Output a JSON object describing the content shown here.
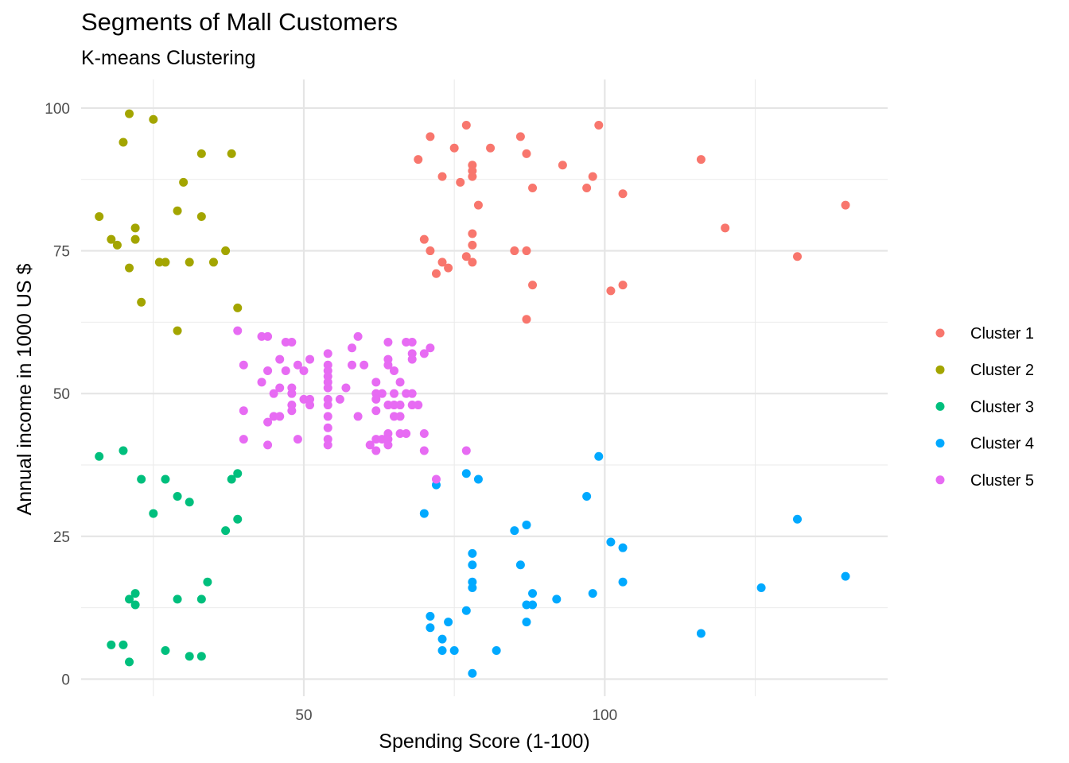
{
  "chart_data": {
    "type": "scatter",
    "title": "Segments of Mall Customers",
    "subtitle": "K-means Clustering",
    "xlabel": "Spending Score (1-100)",
    "ylabel": "Annual income in 1000 US $",
    "xlim": [
      13,
      147
    ],
    "ylim": [
      -3,
      105
    ],
    "x_ticks": [
      50,
      100
    ],
    "y_ticks": [
      0,
      25,
      50,
      75,
      100
    ],
    "grid": true,
    "legend_position": "right",
    "series": [
      {
        "name": "Cluster 1",
        "color": "#F8766D",
        "points": [
          [
            69,
            91
          ],
          [
            71,
            95
          ],
          [
            73,
            88
          ],
          [
            75,
            93
          ],
          [
            76,
            87
          ],
          [
            77,
            97
          ],
          [
            78,
            90
          ],
          [
            78,
            89
          ],
          [
            78,
            88
          ],
          [
            79,
            83
          ],
          [
            81,
            93
          ],
          [
            86,
            95
          ],
          [
            87,
            92
          ],
          [
            88,
            86
          ],
          [
            93,
            90
          ],
          [
            97,
            86
          ],
          [
            98,
            88
          ],
          [
            99,
            97
          ],
          [
            103,
            85
          ],
          [
            116,
            91
          ],
          [
            120,
            79
          ],
          [
            132,
            74
          ],
          [
            140,
            83
          ],
          [
            70,
            77
          ],
          [
            71,
            75
          ],
          [
            72,
            71
          ],
          [
            73,
            73
          ],
          [
            74,
            72
          ],
          [
            77,
            74
          ],
          [
            78,
            76
          ],
          [
            78,
            78
          ],
          [
            78,
            73
          ],
          [
            85,
            75
          ],
          [
            87,
            75
          ],
          [
            88,
            69
          ],
          [
            87,
            63
          ],
          [
            101,
            68
          ],
          [
            103,
            69
          ]
        ]
      },
      {
        "name": "Cluster 2",
        "color": "#A3A500",
        "points": [
          [
            16,
            81
          ],
          [
            18,
            77
          ],
          [
            19,
            76
          ],
          [
            20,
            94
          ],
          [
            21,
            99
          ],
          [
            21,
            72
          ],
          [
            22,
            79
          ],
          [
            22,
            77
          ],
          [
            23,
            66
          ],
          [
            25,
            98
          ],
          [
            26,
            73
          ],
          [
            27,
            73
          ],
          [
            29,
            82
          ],
          [
            29,
            61
          ],
          [
            30,
            87
          ],
          [
            31,
            73
          ],
          [
            33,
            92
          ],
          [
            33,
            81
          ],
          [
            35,
            73
          ],
          [
            37,
            75
          ],
          [
            38,
            92
          ],
          [
            39,
            65
          ]
        ]
      },
      {
        "name": "Cluster 3",
        "color": "#00BF7D",
        "points": [
          [
            16,
            39
          ],
          [
            20,
            40
          ],
          [
            23,
            35
          ],
          [
            25,
            29
          ],
          [
            27,
            35
          ],
          [
            29,
            32
          ],
          [
            31,
            31
          ],
          [
            37,
            26
          ],
          [
            38,
            35
          ],
          [
            39,
            36
          ],
          [
            39,
            28
          ],
          [
            18,
            6
          ],
          [
            20,
            6
          ],
          [
            21,
            14
          ],
          [
            21,
            3
          ],
          [
            22,
            15
          ],
          [
            22,
            13
          ],
          [
            27,
            5
          ],
          [
            29,
            14
          ],
          [
            31,
            4
          ],
          [
            33,
            4
          ],
          [
            33,
            14
          ],
          [
            34,
            17
          ]
        ]
      },
      {
        "name": "Cluster 4",
        "color": "#00A9FF",
        "points": [
          [
            70,
            29
          ],
          [
            72,
            34
          ],
          [
            77,
            36
          ],
          [
            79,
            35
          ],
          [
            78,
            22
          ],
          [
            78,
            20
          ],
          [
            78,
            17
          ],
          [
            78,
            16
          ],
          [
            77,
            12
          ],
          [
            71,
            11
          ],
          [
            71,
            9
          ],
          [
            74,
            10
          ],
          [
            73,
            7
          ],
          [
            73,
            5
          ],
          [
            75,
            5
          ],
          [
            78,
            1
          ],
          [
            82,
            5
          ],
          [
            85,
            26
          ],
          [
            86,
            20
          ],
          [
            87,
            27
          ],
          [
            87,
            13
          ],
          [
            87,
            10
          ],
          [
            88,
            15
          ],
          [
            88,
            13
          ],
          [
            92,
            14
          ],
          [
            97,
            32
          ],
          [
            98,
            15
          ],
          [
            99,
            39
          ],
          [
            101,
            24
          ],
          [
            103,
            23
          ],
          [
            103,
            17
          ],
          [
            116,
            8
          ],
          [
            126,
            16
          ],
          [
            132,
            28
          ],
          [
            140,
            18
          ]
        ]
      },
      {
        "name": "Cluster 5",
        "color": "#E76BF3",
        "points": [
          [
            39,
            61
          ],
          [
            40,
            55
          ],
          [
            40,
            47
          ],
          [
            40,
            42
          ],
          [
            43,
            52
          ],
          [
            43,
            60
          ],
          [
            44,
            60
          ],
          [
            44,
            54
          ],
          [
            44,
            45
          ],
          [
            44,
            41
          ],
          [
            45,
            50
          ],
          [
            45,
            46
          ],
          [
            46,
            56
          ],
          [
            46,
            51
          ],
          [
            46,
            46
          ],
          [
            47,
            59
          ],
          [
            47,
            54
          ],
          [
            48,
            59
          ],
          [
            48,
            51
          ],
          [
            48,
            50
          ],
          [
            48,
            48
          ],
          [
            48,
            47
          ],
          [
            49,
            55
          ],
          [
            49,
            42
          ],
          [
            50,
            49
          ],
          [
            50,
            54
          ],
          [
            51,
            56
          ],
          [
            51,
            48
          ],
          [
            51,
            49
          ],
          [
            54,
            57
          ],
          [
            54,
            55
          ],
          [
            54,
            54
          ],
          [
            54,
            53
          ],
          [
            54,
            52
          ],
          [
            54,
            51
          ],
          [
            54,
            49
          ],
          [
            54,
            48
          ],
          [
            54,
            46
          ],
          [
            54,
            44
          ],
          [
            54,
            42
          ],
          [
            54,
            41
          ],
          [
            56,
            49
          ],
          [
            57,
            51
          ],
          [
            58,
            58
          ],
          [
            58,
            55
          ],
          [
            59,
            60
          ],
          [
            59,
            46
          ],
          [
            60,
            55
          ],
          [
            61,
            41
          ],
          [
            62,
            52
          ],
          [
            62,
            50
          ],
          [
            62,
            49
          ],
          [
            62,
            47
          ],
          [
            62,
            42
          ],
          [
            62,
            40
          ],
          [
            63,
            50
          ],
          [
            63,
            42
          ],
          [
            64,
            59
          ],
          [
            64,
            56
          ],
          [
            64,
            55
          ],
          [
            64,
            48
          ],
          [
            64,
            43
          ],
          [
            64,
            42
          ],
          [
            64,
            41
          ],
          [
            65,
            54
          ],
          [
            65,
            50
          ],
          [
            65,
            48
          ],
          [
            65,
            46
          ],
          [
            66,
            52
          ],
          [
            66,
            48
          ],
          [
            66,
            46
          ],
          [
            66,
            43
          ],
          [
            67,
            59
          ],
          [
            67,
            50
          ],
          [
            67,
            43
          ],
          [
            68,
            59
          ],
          [
            68,
            57
          ],
          [
            68,
            56
          ],
          [
            68,
            50
          ],
          [
            68,
            48
          ],
          [
            69,
            48
          ],
          [
            70,
            57
          ],
          [
            70,
            43
          ],
          [
            70,
            40
          ],
          [
            71,
            58
          ],
          [
            72,
            35
          ],
          [
            77,
            40
          ]
        ]
      }
    ]
  }
}
